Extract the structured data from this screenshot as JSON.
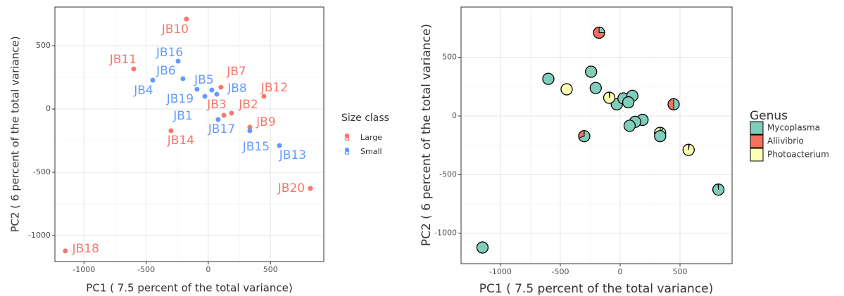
{
  "chart_data": [
    {
      "type": "labeled-scatter",
      "x_label": "PC1 ( 7.5 percent of the total variance)",
      "y_label": "PC2 ( 6 percent of the total variance)",
      "legend_title": "Size class",
      "legend_key_glyph": "a",
      "xlim": [
        -1234,
        929
      ],
      "ylim": [
        -1206,
        806
      ],
      "xticks": [
        -1000,
        -500,
        0,
        500
      ],
      "yticks": [
        -1000,
        -500,
        0,
        500
      ],
      "grid": true,
      "series": [
        {
          "name": "Large",
          "color": "#F8766D",
          "labels": [
            "JB2",
            "JB3",
            "JB7",
            "JB9",
            "JB10",
            "JB11",
            "JB12",
            "JB14",
            "JB18",
            "JB20"
          ],
          "x": [
            187,
            125,
            102,
            334,
            -176,
            -600,
            447,
            -300,
            -1150,
            821
          ],
          "y": [
            -33,
            -50,
            172,
            -144,
            711,
            317,
            100,
            -172,
            -1122,
            -628
          ]
        },
        {
          "name": "Small",
          "color": "#619CFF",
          "labels": [
            "JB1",
            "JB4",
            "JB5",
            "JB6",
            "JB8",
            "JB13",
            "JB15",
            "JB16",
            "JB17",
            "JB19"
          ],
          "x": [
            -28,
            -447,
            28,
            -204,
            68,
            572,
            334,
            -243,
            79,
            -91
          ],
          "y": [
            100,
            228,
            150,
            239,
            117,
            -289,
            -172,
            378,
            -83,
            156
          ]
        }
      ]
    },
    {
      "type": "scatter-pie",
      "x_label": "PC1 ( 7.5 percent of the total variance)",
      "y_label": "PC2 ( 6 percent of the total variance)",
      "legend_title": "Genus",
      "xlim": [
        -1329,
        935
      ],
      "ylim": [
        -1260,
        930
      ],
      "xticks": [
        -1000,
        -500,
        0,
        500
      ],
      "yticks": [
        -1000,
        -500,
        0,
        500
      ],
      "grid": true,
      "x": [
        -28,
        187,
        125,
        -447,
        28,
        -204,
        102,
        68,
        334,
        -176,
        -600,
        447,
        572,
        -300,
        334,
        -243,
        79,
        -1150,
        -91,
        821
      ],
      "y": [
        100,
        -33,
        -50,
        228,
        150,
        239,
        172,
        117,
        -144,
        711,
        317,
        100,
        -289,
        -172,
        -172,
        378,
        -83,
        -1122,
        156,
        -628
      ],
      "series": [
        {
          "name": "Mycoplasma",
          "color": "#80CDBB",
          "values": [
            100,
            100,
            100,
            0,
            100,
            100,
            100,
            100,
            10,
            25,
            100,
            50,
            2,
            70,
            100,
            100,
            100,
            100,
            2,
            99
          ]
        },
        {
          "name": "Aliivibrio",
          "color": "#F4705F",
          "values": [
            0,
            0,
            0,
            0,
            0,
            0,
            0,
            0,
            0,
            75,
            0,
            50,
            0,
            30,
            0,
            0,
            0,
            0,
            0,
            0
          ]
        },
        {
          "name": "Photoacterium",
          "color": "#FFFFB3",
          "values": [
            0,
            0,
            0,
            100,
            0,
            0,
            0,
            0,
            90,
            0,
            0,
            0,
            98,
            0,
            0,
            0,
            0,
            0,
            98,
            1
          ]
        }
      ]
    }
  ]
}
